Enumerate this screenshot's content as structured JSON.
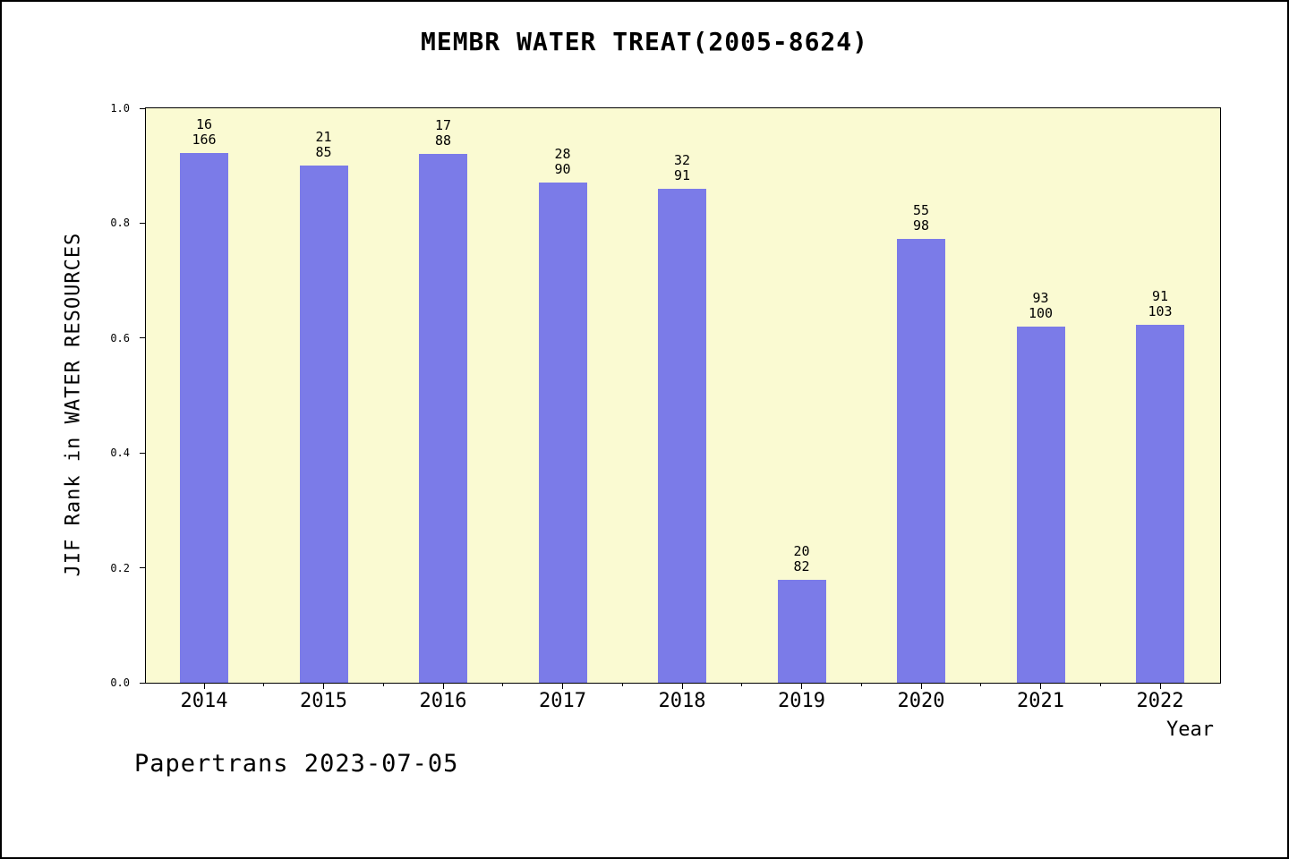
{
  "title": "MEMBR WATER TREAT(2005-8624)",
  "footer": "Papertrans 2023-07-05",
  "chart_data": {
    "type": "bar",
    "title": "MEMBR WATER TREAT(2005-8624)",
    "xlabel": "Year",
    "ylabel": "JIF Rank in WATER RESOURCES",
    "ylim": [
      0.0,
      1.0
    ],
    "yticks": [
      "0.0",
      "0.2",
      "0.4",
      "0.6",
      "0.8",
      "1.0"
    ],
    "grid": false,
    "legend": false,
    "categories": [
      "2014",
      "2015",
      "2016",
      "2017",
      "2018",
      "2019",
      "2020",
      "2021",
      "2022"
    ],
    "values": [
      0.922,
      0.9,
      0.92,
      0.871,
      0.86,
      0.179,
      0.773,
      0.62,
      0.623
    ],
    "bar_labels": [
      {
        "rank": "16",
        "total": "166"
      },
      {
        "rank": "21",
        "total": "85"
      },
      {
        "rank": "17",
        "total": "88"
      },
      {
        "rank": "28",
        "total": "90"
      },
      {
        "rank": "32",
        "total": "91"
      },
      {
        "rank": "20",
        "total": "82"
      },
      {
        "rank": "55",
        "total": "98"
      },
      {
        "rank": "93",
        "total": "100"
      },
      {
        "rank": "91",
        "total": "103"
      }
    ],
    "bar_color": "#7b7be8",
    "plot_background": "#fafad2",
    "outer_background": "#ffffff"
  }
}
